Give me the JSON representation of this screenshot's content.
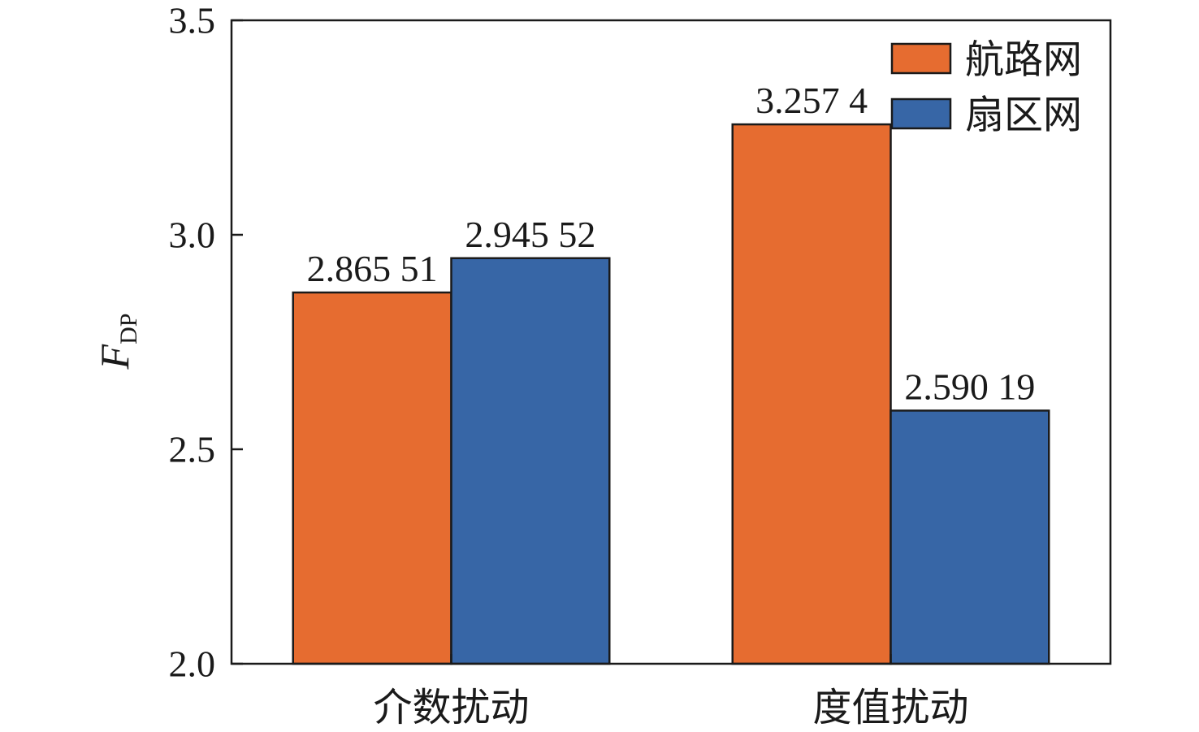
{
  "chart_data": {
    "type": "bar",
    "title": "",
    "xlabel": "",
    "ylabel": {
      "main": "F",
      "sub": "DP"
    },
    "categories": [
      "介数扰动",
      "度值扰动"
    ],
    "series": [
      {
        "name": "航路网",
        "color": "#E66C30",
        "values": [
          2.86551,
          3.2574
        ],
        "labels": [
          "2.865 51",
          "3.257 4"
        ]
      },
      {
        "name": "扇区网",
        "color": "#3766A6",
        "values": [
          2.94552,
          2.59019
        ],
        "labels": [
          "2.945 52",
          "2.590 19"
        ]
      }
    ],
    "ylim": [
      2.0,
      3.5
    ],
    "yticks": [
      2.0,
      2.5,
      3.0,
      3.5
    ],
    "ytick_labels": [
      "2.0",
      "2.5",
      "3.0",
      "3.5"
    ],
    "legend_position": "top-right",
    "grid": false
  }
}
